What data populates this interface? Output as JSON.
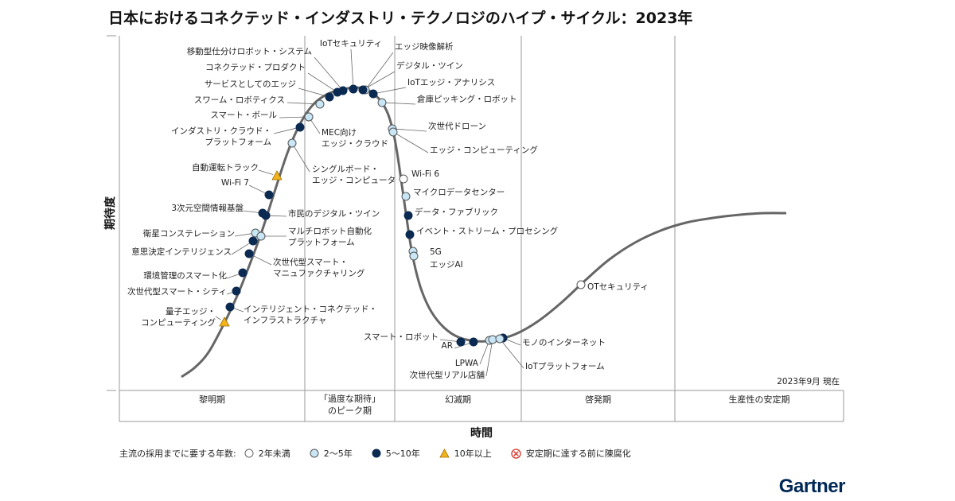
{
  "title": "日本におけるコネクテッド・インダストリ・テクノロジのハイプ・サイクル：2023年",
  "brand": "Gartner",
  "colors": {
    "lt2": "#ffffff",
    "y2to5": "#c8e6f5",
    "y5to10": "#0b2a52",
    "gt10": "#f3b41b",
    "obsolete": "#d9362b",
    "curve": "#666666",
    "divider": "#999999"
  },
  "chart_data": {
    "type": "hype-cycle",
    "ylabel": "期待度",
    "xlabel": "時間",
    "as_of": "2023年9月 現在",
    "phases": [
      "黎明期",
      "「過度な期待」\nのピーク期",
      "幻滅期",
      "啓発期",
      "生産性の安定期"
    ],
    "legend": {
      "caption": "主流の採用までに要する年数:",
      "items": [
        {
          "key": "lt2",
          "label": "2年未満"
        },
        {
          "key": "y2to5",
          "label": "2〜5年"
        },
        {
          "key": "y5to10",
          "label": "5〜10年"
        },
        {
          "key": "gt10",
          "label": "10年以上"
        },
        {
          "key": "obsolete",
          "label": "安定期に達する前に陳腐化"
        }
      ]
    },
    "technologies": [
      {
        "name": "量子エッジ・\nコンピューティング",
        "phase": "黎明期",
        "years": "gt10"
      },
      {
        "name": "インテリジェント・コネクテッド・\nインフラストラクチャ",
        "phase": "黎明期",
        "years": "y5to10"
      },
      {
        "name": "次世代型スマート・シティ",
        "phase": "黎明期",
        "years": "y5to10"
      },
      {
        "name": "環境管理のスマート化",
        "phase": "黎明期",
        "years": "y5to10"
      },
      {
        "name": "次世代型スマート・\nマニュファクチャリング",
        "phase": "黎明期",
        "years": "y5to10"
      },
      {
        "name": "意思決定インテリジェンス",
        "phase": "黎明期",
        "years": "y5to10"
      },
      {
        "name": "衛星コンステレーション",
        "phase": "黎明期",
        "years": "y2to5"
      },
      {
        "name": "マルチロボット自動化\nプラットフォーム",
        "phase": "黎明期",
        "years": "y2to5"
      },
      {
        "name": "3次元空間情報基盤",
        "phase": "黎明期",
        "years": "y5to10"
      },
      {
        "name": "市民のデジタル・ツイン",
        "phase": "黎明期",
        "years": "y5to10"
      },
      {
        "name": "Wi-Fi 7",
        "phase": "黎明期",
        "years": "y5to10"
      },
      {
        "name": "自動運転トラック",
        "phase": "黎明期",
        "years": "gt10"
      },
      {
        "name": "シングルボード・\nエッジ・コンピュータ",
        "phase": "黎明期",
        "years": "y2to5"
      },
      {
        "name": "インダストリ・クラウド・\nプラットフォーム",
        "phase": "黎明期",
        "years": "y5to10"
      },
      {
        "name": "MEC向け\nエッジ・クラウド",
        "phase": "黎明期",
        "years": "y2to5"
      },
      {
        "name": "スマート・ボール",
        "phase": "黎明期",
        "years": "y2to5"
      },
      {
        "name": "スワーム・ロボティクス",
        "phase": "「過度な期待」のピーク期",
        "years": "y2to5"
      },
      {
        "name": "サービスとしてのエッジ",
        "phase": "「過度な期待」のピーク期",
        "years": "y5to10"
      },
      {
        "name": "コネクテッド・プロダクト",
        "phase": "「過度な期待」のピーク期",
        "years": "y5to10"
      },
      {
        "name": "移動型仕分けロボット・システム",
        "phase": "「過度な期待」のピーク期",
        "years": "y5to10"
      },
      {
        "name": "IoTセキュリティ",
        "phase": "「過度な期待」のピーク期",
        "years": "y5to10"
      },
      {
        "name": "エッジ映像解析",
        "phase": "「過度な期待」のピーク期",
        "years": "y2to5"
      },
      {
        "name": "デジタル・ツイン",
        "phase": "「過度な期待」のピーク期",
        "years": "y5to10"
      },
      {
        "name": "IoTエッジ・アナリシス",
        "phase": "「過度な期待」のピーク期",
        "years": "y5to10"
      },
      {
        "name": "倉庫ピッキング・ロボット",
        "phase": "「過度な期待」のピーク期",
        "years": "y2to5"
      },
      {
        "name": "次世代ドローン",
        "phase": "「過度な期待」のピーク期",
        "years": "y2to5"
      },
      {
        "name": "エッジ・コンピューティング",
        "phase": "幻滅期",
        "years": "y2to5"
      },
      {
        "name": "Wi-Fi 6",
        "phase": "幻滅期",
        "years": "lt2"
      },
      {
        "name": "マイクロデータセンター",
        "phase": "幻滅期",
        "years": "y2to5"
      },
      {
        "name": "データ・ファブリック",
        "phase": "幻滅期",
        "years": "y5to10"
      },
      {
        "name": "イベント・ストリーム・プロセシング",
        "phase": "幻滅期",
        "years": "y5to10"
      },
      {
        "name": "5G",
        "phase": "幻滅期",
        "years": "y2to5"
      },
      {
        "name": "エッジAI",
        "phase": "幻滅期",
        "years": "y2to5"
      },
      {
        "name": "スマート・ロボット",
        "phase": "幻滅期",
        "years": "y5to10"
      },
      {
        "name": "AR",
        "phase": "幻滅期",
        "years": "y5to10"
      },
      {
        "name": "LPWA",
        "phase": "幻滅期",
        "years": "y2to5"
      },
      {
        "name": "次世代型リアル店舗",
        "phase": "幻滅期",
        "years": "y2to5"
      },
      {
        "name": "モノのインターネット",
        "phase": "幻滅期",
        "years": "y5to10"
      },
      {
        "name": "IoTプラットフォーム",
        "phase": "幻滅期",
        "years": "y2to5"
      },
      {
        "name": "OTセキュリティ",
        "phase": "啓発期",
        "years": "lt2"
      }
    ]
  }
}
